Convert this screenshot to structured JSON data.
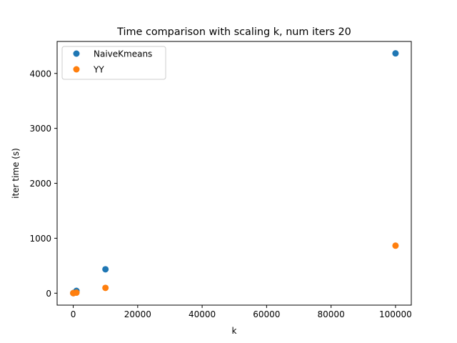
{
  "chart_data": {
    "type": "scatter",
    "title": "Time comparison with scaling k, num iters 20",
    "xlabel": "k",
    "ylabel": "iter time (s)",
    "xlim": [
      -4995,
      104895
    ],
    "ylim": [
      -217,
      4582
    ],
    "xticks": [
      0,
      20000,
      40000,
      60000,
      80000,
      100000
    ],
    "yticks": [
      0,
      1000,
      2000,
      3000,
      4000
    ],
    "grid": false,
    "legend_position": "top-left",
    "series": [
      {
        "name": "NaiveKmeans",
        "color": "#1f77b4",
        "points": [
          {
            "x": 10,
            "y": 1
          },
          {
            "x": 100,
            "y": 5
          },
          {
            "x": 1000,
            "y": 43
          },
          {
            "x": 10000,
            "y": 435
          },
          {
            "x": 100000,
            "y": 4365
          }
        ]
      },
      {
        "name": "YY",
        "color": "#ff7f0e",
        "points": [
          {
            "x": 10,
            "y": 1
          },
          {
            "x": 100,
            "y": 3
          },
          {
            "x": 1000,
            "y": 10
          },
          {
            "x": 10000,
            "y": 97
          },
          {
            "x": 100000,
            "y": 865
          }
        ]
      }
    ]
  }
}
